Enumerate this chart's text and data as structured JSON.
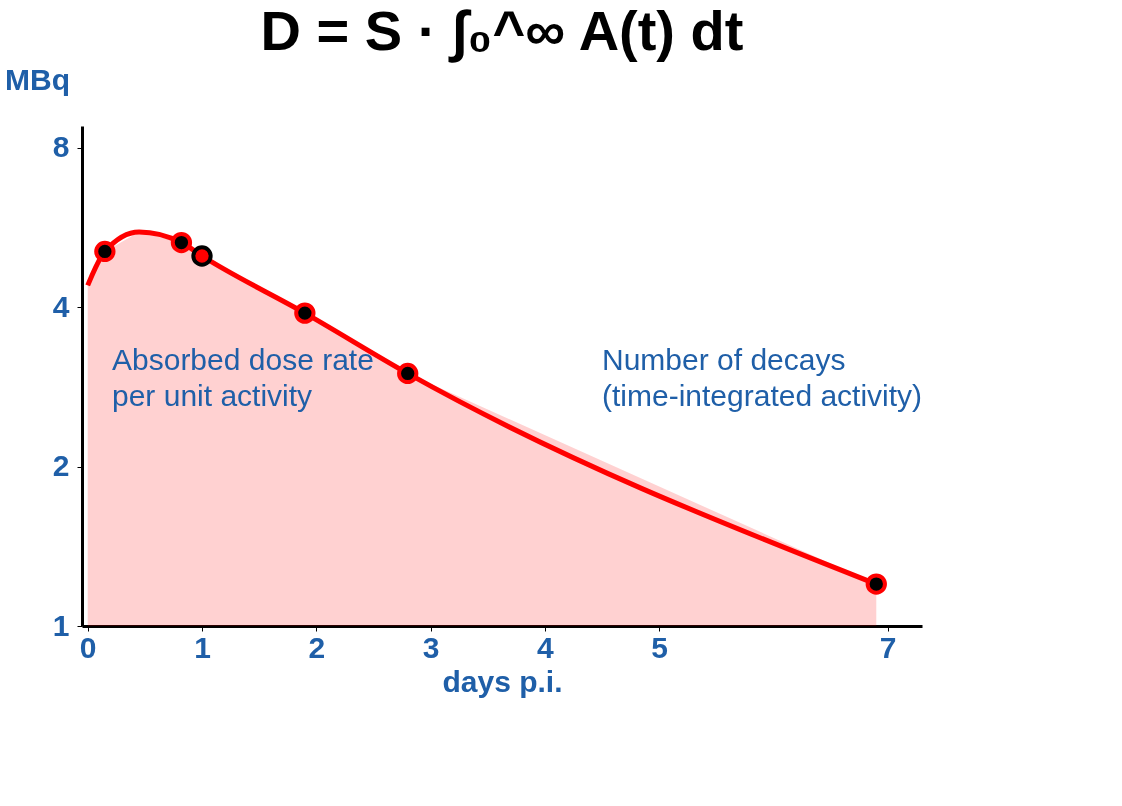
{
  "chart_data": {
    "type": "scatter",
    "title": "D = S · ∫₀^∞ A(t) dt",
    "xlabel": "days p.i.",
    "ylabel": "MBq",
    "log": "y",
    "xlim": [
      -0.05,
      7.3
    ],
    "xticks": [
      {
        "value": 0,
        "label": "0"
      },
      {
        "value": 1,
        "label": "1"
      },
      {
        "value": 2,
        "label": "2"
      },
      {
        "value": 3,
        "label": "3"
      },
      {
        "value": 4,
        "label": "4"
      },
      {
        "value": 5,
        "label": "5"
      },
      {
        "value": 7,
        "label": "7"
      }
    ],
    "ylim": [
      1,
      8.8
    ],
    "yticks": [
      1,
      2,
      4,
      8
    ],
    "grid": false,
    "legend": false,
    "marker": "circle",
    "annotations": [
      "Absorbed dose rate per unit activity",
      "Number of decays (time-integrated activity)"
    ],
    "series": [
      {
        "type": "area",
        "marker": "none",
        "color": "#ff0000",
        "x": [
          0,
          0.15,
          0.45,
          0.82,
          1.0,
          1.9,
          2.8,
          6.9
        ],
        "values": [
          4.4,
          5.1,
          5.55,
          5.3,
          5.0,
          3.9,
          3.0,
          1.2
        ]
      },
      {
        "color": "#000000",
        "x": [
          0.15,
          0.82,
          1.9,
          2.8,
          6.9
        ],
        "values": [
          5.1,
          5.3,
          3.9,
          3.0,
          1.2
        ]
      },
      {
        "color": "#ff0000",
        "x": [
          1.0
        ],
        "values": [
          5.0
        ]
      }
    ]
  }
}
